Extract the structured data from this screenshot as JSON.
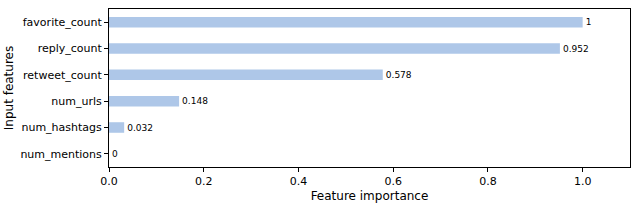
{
  "chart_data": {
    "type": "bar",
    "orientation": "horizontal",
    "xlabel": "Feature importance",
    "ylabel": "Input features",
    "categories": [
      "num_mentions",
      "num_hashtags",
      "num_urls",
      "retweet_count",
      "reply_count",
      "favorite_count"
    ],
    "values": [
      0,
      0.032,
      0.148,
      0.578,
      0.952,
      1
    ],
    "color": "#aec7e8",
    "xlim": [
      0,
      1.1
    ],
    "xticks": [
      {
        "value": 0,
        "label": "0.0"
      },
      0.2,
      0.4,
      0.6,
      0.8,
      {
        "value": 1,
        "label": "1.0"
      }
    ],
    "grid": false,
    "data_labels": true
  }
}
